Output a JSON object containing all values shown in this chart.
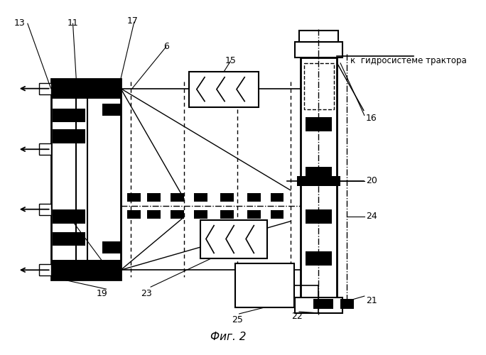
{
  "title": "Фиг. 2",
  "caption": "к  гидросистеме трактора",
  "bg_color": "#ffffff",
  "line_color": "#000000"
}
